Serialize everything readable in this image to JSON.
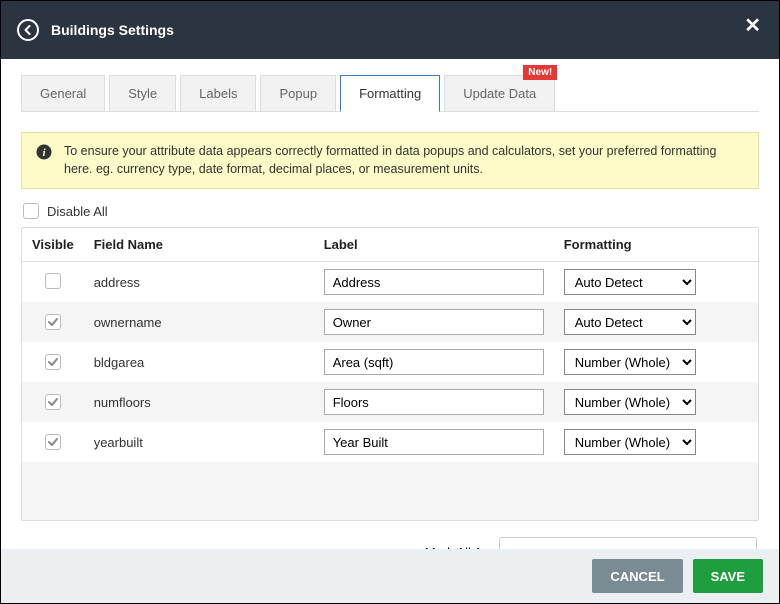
{
  "header": {
    "title": "Buildings Settings"
  },
  "tabs": {
    "items": [
      {
        "label": "General"
      },
      {
        "label": "Style"
      },
      {
        "label": "Labels"
      },
      {
        "label": "Popup"
      },
      {
        "label": "Formatting"
      },
      {
        "label": "Update Data",
        "badge": "New!"
      }
    ],
    "active_index": 4
  },
  "banner": {
    "text": "To ensure your attribute data appears correctly formatted in data popups and calculators, set your preferred formatting here. eg. currency type, date format, decimal places, or measurement units."
  },
  "disable_all": {
    "label": "Disable All",
    "checked": false
  },
  "table": {
    "headers": {
      "visible": "Visible",
      "field": "Field Name",
      "label": "Label",
      "formatting": "Formatting"
    },
    "rows": [
      {
        "visible": false,
        "field": "address",
        "label": "Address",
        "formatting": "Auto Detect"
      },
      {
        "visible": true,
        "field": "ownername",
        "label": "Owner",
        "formatting": "Auto Detect"
      },
      {
        "visible": true,
        "field": "bldgarea",
        "label": "Area (sqft)",
        "formatting": "Number (Whole)"
      },
      {
        "visible": true,
        "field": "numfloors",
        "label": "Floors",
        "formatting": "Number (Whole)"
      },
      {
        "visible": true,
        "field": "yearbuilt",
        "label": "Year Built",
        "formatting": "Number (Whole)"
      }
    ]
  },
  "mark_all": {
    "label": "Mark All As",
    "value": ""
  },
  "footer": {
    "cancel": "CANCEL",
    "save": "SAVE"
  },
  "colors": {
    "header_bg": "#2a3541",
    "banner_bg": "#fdfbc8",
    "banner_border": "#e8e29a",
    "badge_bg": "#e53935",
    "active_tab_border": "#3b73d1",
    "cancel_bg": "#7a8b94",
    "save_bg": "#1e9e3e",
    "footer_bg": "#eceff1"
  }
}
